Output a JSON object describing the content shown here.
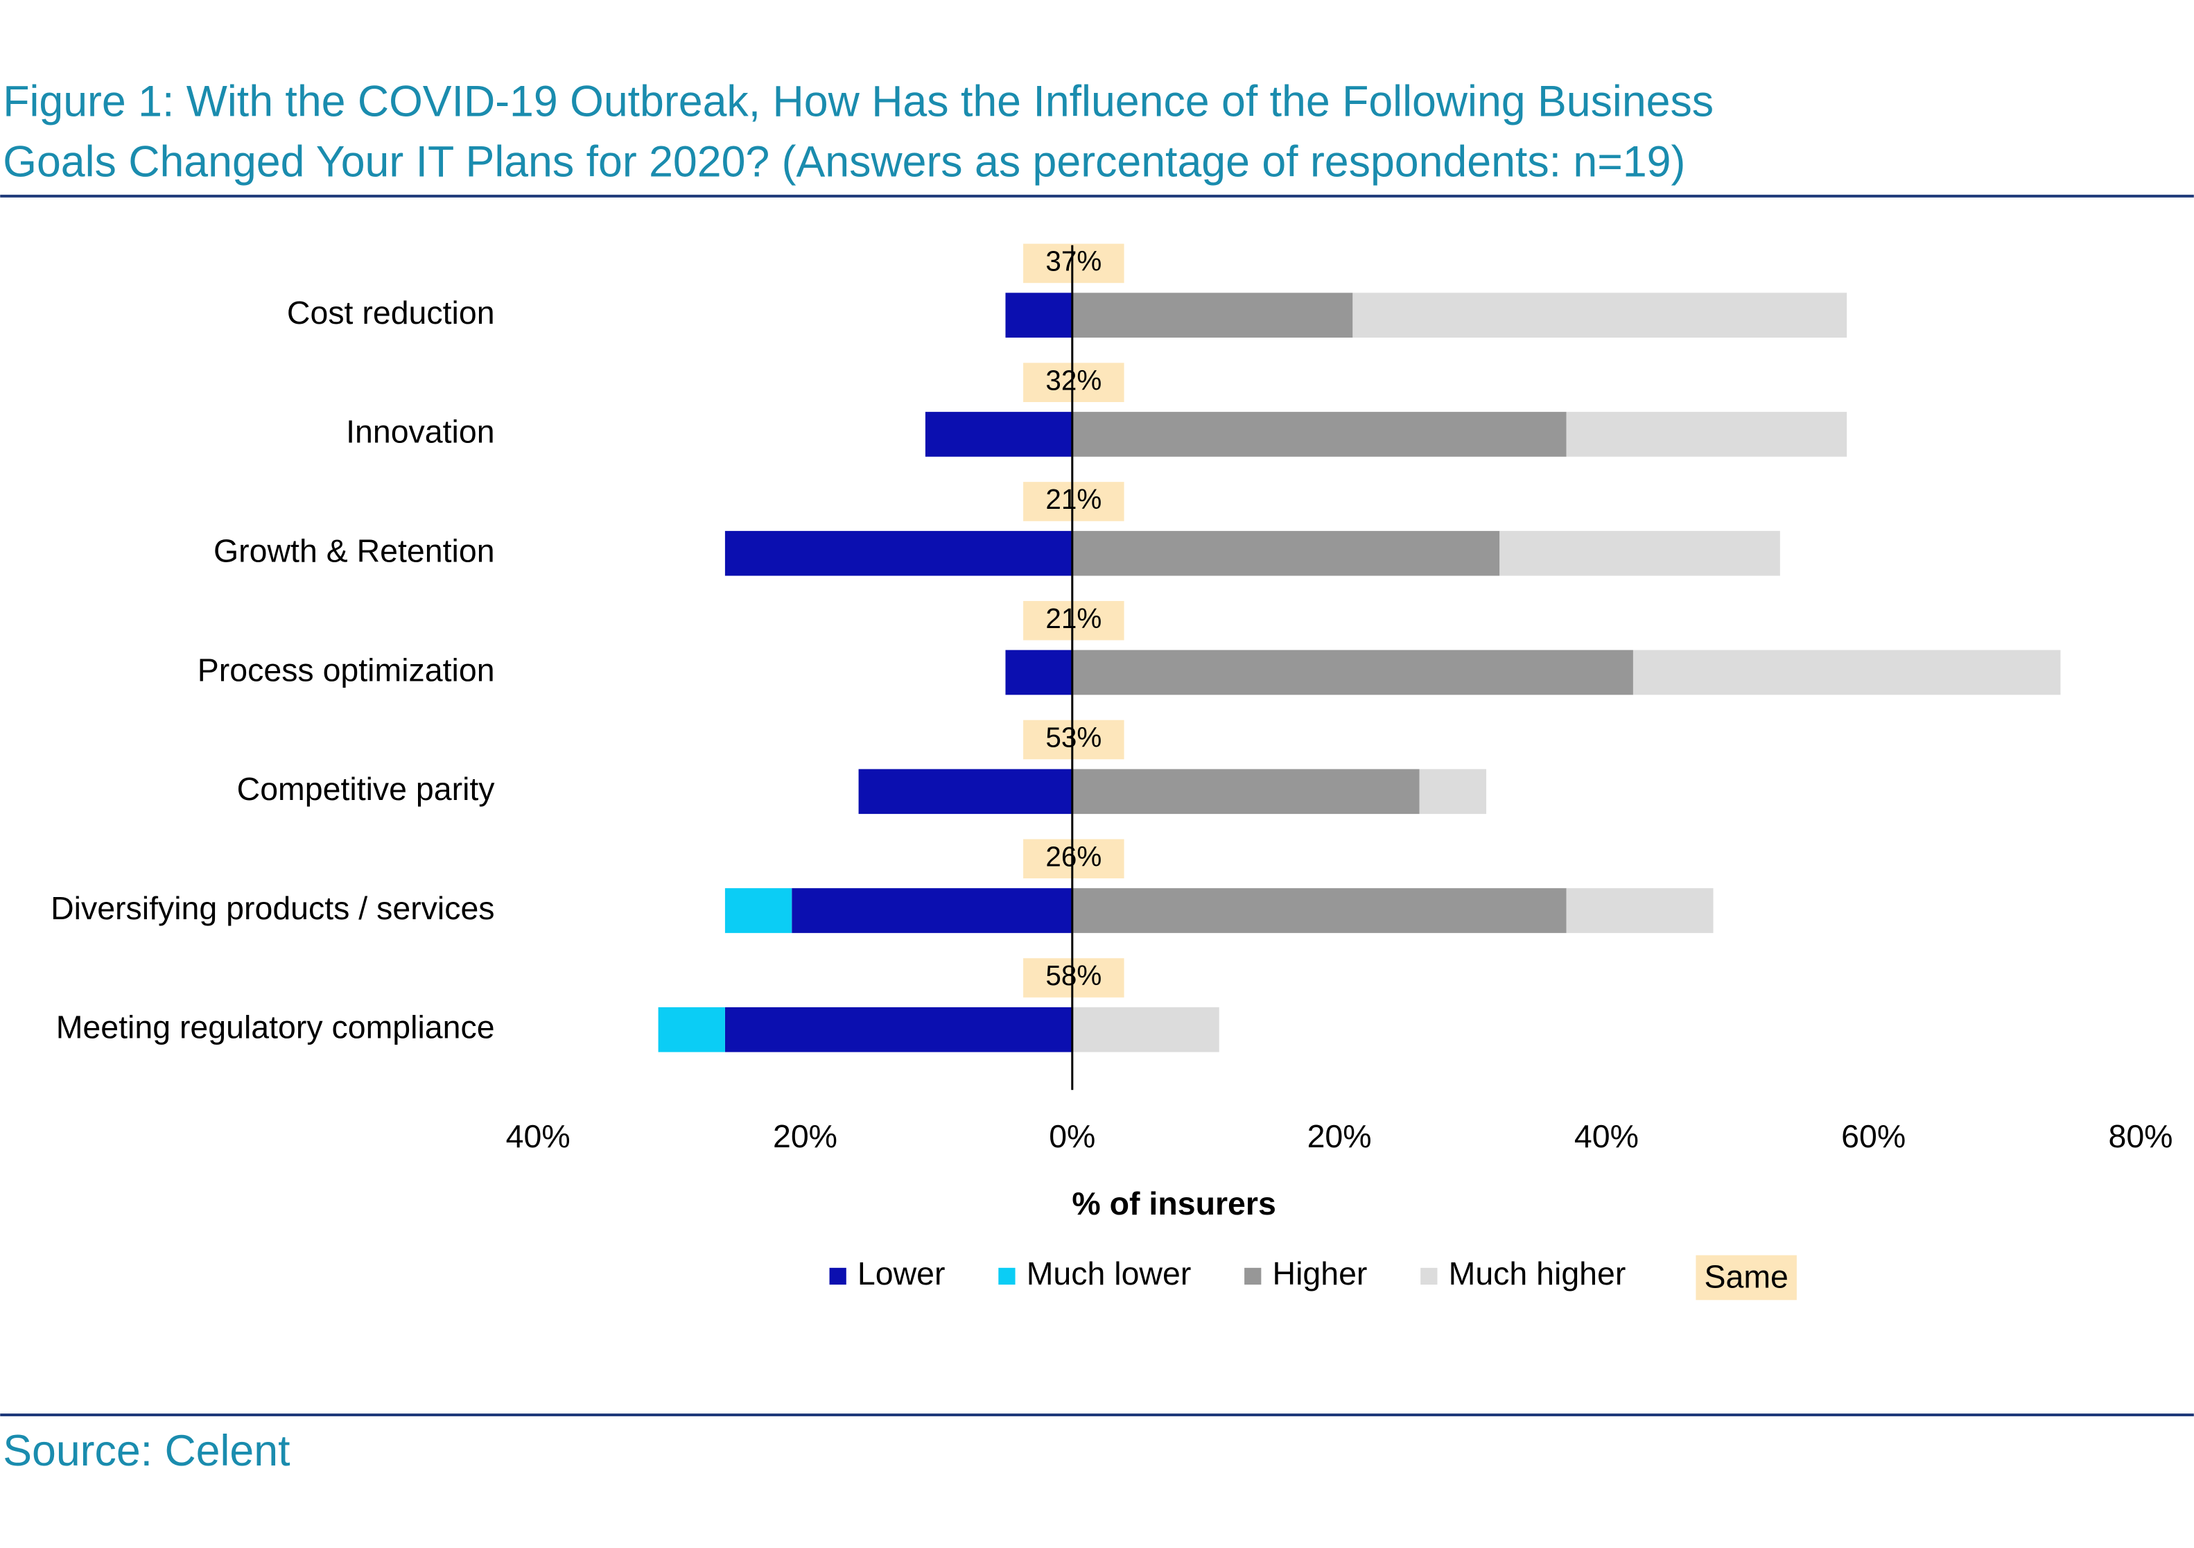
{
  "chart_data": {
    "type": "bar",
    "orientation": "horizontal",
    "title": [
      "Figure 1: With the COVID-19 Outbreak, How Has the Influence of the Following Business",
      "Goals Changed Your IT Plans for 2020? (Answers as percentage of respondents: n=19)"
    ],
    "source": "Source: Celent",
    "xlabel": "% of insurers",
    "categories": [
      "Cost reduction",
      "Innovation",
      "Growth & Retention",
      "Process optimization",
      "Competitive parity",
      "Diversifying products / services",
      "Meeting regulatory compliance"
    ],
    "series": [
      {
        "name": "Lower",
        "color": "#0b0fb0",
        "values": [
          -5,
          -11,
          -26,
          -5,
          -16,
          -21,
          -26
        ]
      },
      {
        "name": "Much lower",
        "color": "#0bcdf5",
        "values": [
          0,
          0,
          0,
          0,
          0,
          -5,
          -5
        ]
      },
      {
        "name": "Higher",
        "color": "#979797",
        "values": [
          21,
          37,
          32,
          42,
          26,
          37,
          0
        ]
      },
      {
        "name": "Much higher",
        "color": "#dcdcdc",
        "values": [
          37,
          21,
          21,
          32,
          5,
          11,
          11
        ]
      },
      {
        "name": "Same",
        "color": "#fde6bb",
        "type": "label",
        "values": [
          37,
          32,
          21,
          21,
          53,
          26,
          58
        ],
        "value_labels": [
          "37%",
          "32%",
          "21%",
          "21%",
          "53%",
          "26%",
          "58%"
        ]
      }
    ],
    "xlim": [
      -40,
      80
    ],
    "xticks": [
      {
        "value": -40,
        "label": "40%"
      },
      {
        "value": -20,
        "label": "20%"
      },
      {
        "value": 0,
        "label": "0%"
      },
      {
        "value": 20,
        "label": "20%"
      },
      {
        "value": 40,
        "label": "40%"
      },
      {
        "value": 60,
        "label": "60%"
      },
      {
        "value": 80,
        "label": "80%"
      }
    ],
    "legend": "bottom"
  }
}
